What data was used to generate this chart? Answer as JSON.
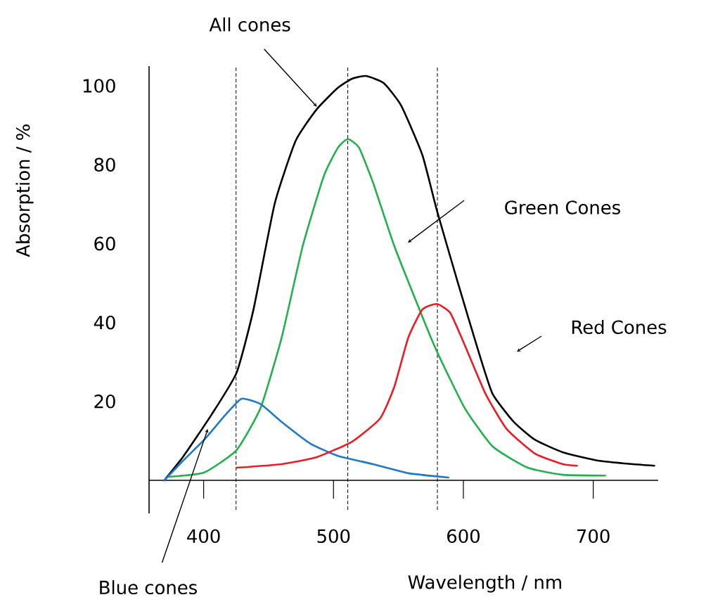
{
  "chart_data": {
    "type": "line",
    "xlabel": "Wavelength / nm",
    "ylabel": "Absorption / %",
    "xlim": [
      358,
      750
    ],
    "ylim": [
      0,
      105
    ],
    "xticks": [
      400,
      500,
      600,
      700
    ],
    "yticks": [
      20,
      40,
      60,
      80,
      100
    ],
    "series": [
      {
        "color": "#000000",
        "x": [
          369.7,
          384,
          406,
          425.4,
          438.4,
          454.7,
          470.9,
          487.2,
          503.4,
          514.2,
          525.1,
          538.6,
          552.1,
          568.4,
          579.7,
          595.5,
          611.7,
          622.5,
          638.8,
          655.0,
          676.7,
          703.7,
          730.8,
          747
        ],
        "values": [
          0,
          5.9,
          16.6,
          27.3,
          43.3,
          70.1,
          86.1,
          94.1,
          99.5,
          101.8,
          102.5,
          100.7,
          95.0,
          82.5,
          68.3,
          50.4,
          32.6,
          21.9,
          14.8,
          10.3,
          7.1,
          5.0,
          4.1,
          3.7
        ]
      },
      {
        "color": "#22b14c",
        "x": [
          373.5,
          400.5,
          425.4,
          443.9,
          460.1,
          476.3,
          492.6,
          503.4,
          511,
          519.7,
          530.5,
          546.8,
          568.4,
          579.7,
          600.9,
          622.5,
          649.6,
          676.7,
          709.2
        ],
        "values": [
          0.9,
          2.0,
          7.7,
          18.4,
          36.2,
          59.4,
          77.2,
          84.3,
          86.5,
          84.3,
          75.4,
          59.4,
          41.5,
          32.6,
          18.4,
          8.6,
          3.2,
          1.4,
          1.2
        ]
      },
      {
        "color": "#1f78c8",
        "x": [
          369.7,
          384.3,
          400.5,
          416.8,
          429.2,
          443.9,
          460.1,
          481.8,
          503.4,
          530.5,
          557.6,
          588.4
        ],
        "values": [
          0,
          5.0,
          10.3,
          16.6,
          20.7,
          19.3,
          14.8,
          9.4,
          6.2,
          4.1,
          1.8,
          0.7
        ]
      },
      {
        "color": "#ed1c24",
        "x": [
          425.4,
          460.1,
          487.2,
          514.2,
          535.9,
          546.8,
          557.6,
          568.4,
          579.7,
          590.0,
          600.9,
          617.1,
          633.4,
          655.0,
          676.7,
          687.5
        ],
        "values": [
          3.2,
          4.1,
          5.9,
          9.8,
          15.7,
          23.7,
          36.2,
          43.3,
          44.7,
          42.4,
          34.4,
          21.9,
          13.0,
          6.8,
          4.1,
          3.7
        ]
      }
    ],
    "ref_lines": [
      {
        "axis": "x",
        "value": 425,
        "color": "#000000",
        "line_style": "dashed"
      },
      {
        "axis": "x",
        "value": 511,
        "color": "#000000",
        "line_style": "dashed"
      },
      {
        "axis": "x",
        "value": 580,
        "color": "#000000",
        "line_style": "dashed"
      }
    ],
    "annotations": [
      {
        "text": "All cones",
        "x": 487.2,
        "y": 94.7
      },
      "Green Cones",
      "Red Cones",
      {
        "text": "Blue cones",
        "x": 403.2,
        "y": 13.0
      }
    ]
  }
}
